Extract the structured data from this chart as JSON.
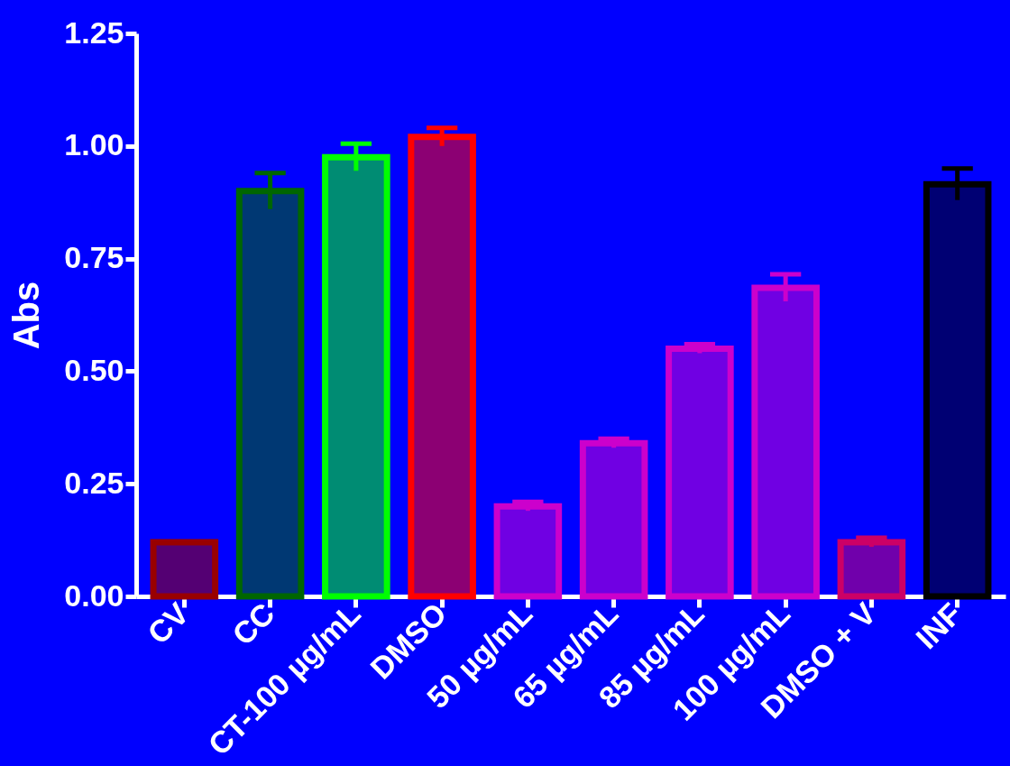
{
  "chart_data": {
    "type": "bar",
    "ylabel": "Abs",
    "categories": [
      "CV",
      "CC",
      "CT-100 µg/mL",
      "DMSO",
      "50 µg/mL",
      "65 µg/mL",
      "85 µg/mL",
      "100 µg/mL",
      "DMSO + V",
      "INF"
    ],
    "values": [
      0.12,
      0.9,
      0.975,
      1.02,
      0.2,
      0.34,
      0.55,
      0.685,
      0.12,
      0.915
    ],
    "errors": [
      null,
      0.04,
      0.03,
      0.02,
      0.01,
      0.01,
      0.01,
      0.03,
      0.01,
      0.035
    ],
    "colors": [
      "#990000",
      "#006600",
      "#00ff00",
      "#ff0000",
      "#cc00cc",
      "#cc00cc",
      "#cc00cc",
      "#cc00cc",
      "#cc0066",
      "#000000"
    ],
    "ylim": [
      0,
      1.25
    ],
    "yticks": [
      {
        "value": 0,
        "label": "0.00"
      },
      {
        "value": 0.25,
        "label": "0.25"
      },
      {
        "value": 0.5,
        "label": "0.50"
      },
      {
        "value": 0.75,
        "label": "0.75"
      },
      {
        "value": 1,
        "label": "1.00"
      },
      {
        "value": 1.25,
        "label": "1.25"
      }
    ],
    "grid": false
  }
}
